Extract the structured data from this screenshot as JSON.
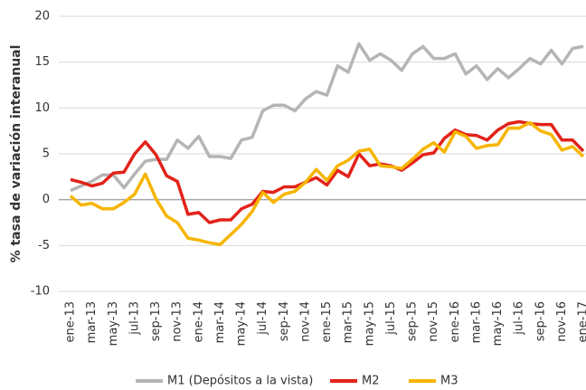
{
  "chart_data": {
    "type": "line",
    "ylabel": "% tasa de variación interanual",
    "categories": [
      "ene-13",
      null,
      "mar-13",
      null,
      "may-13",
      null,
      "jul-13",
      null,
      "sep-13",
      null,
      "nov-13",
      null,
      "ene-14",
      null,
      "mar-14",
      null,
      "may-14",
      null,
      "jul-14",
      null,
      "sep-14",
      null,
      "nov-14",
      null,
      "ene-15",
      null,
      "mar-15",
      null,
      "may-15",
      null,
      "jul-15",
      null,
      "sep-15",
      null,
      "nov-15",
      null,
      "ene-16",
      null,
      "mar-16",
      null,
      "may-16",
      null,
      "jul-16",
      null,
      "sep-16",
      null,
      "nov-16",
      null,
      "ene-17"
    ],
    "series": [
      {
        "name": "M1 (Depósitos a la vista)",
        "color": "#b5b5b5",
        "values": [
          1.0,
          1.5,
          2.0,
          2.7,
          2.7,
          1.3,
          2.8,
          4.2,
          4.4,
          4.4,
          6.5,
          5.6,
          6.9,
          4.7,
          4.7,
          4.5,
          6.5,
          6.8,
          9.7,
          10.3,
          10.3,
          9.7,
          11.0,
          11.8,
          11.4,
          14.6,
          13.9,
          17.0,
          15.2,
          15.9,
          15.2,
          14.1,
          15.9,
          16.7,
          15.4,
          15.4,
          15.9,
          13.7,
          14.6,
          13.1,
          14.3,
          13.3,
          14.3,
          15.4,
          14.8,
          16.3,
          14.8,
          16.5,
          16.7
        ]
      },
      {
        "name": "M2",
        "color": "#e2231a",
        "values": [
          2.2,
          1.9,
          1.5,
          1.8,
          2.9,
          3.0,
          5.0,
          6.3,
          4.9,
          2.6,
          2.0,
          -1.6,
          -1.4,
          -2.5,
          -2.2,
          -2.2,
          -1.0,
          -0.5,
          0.9,
          0.8,
          1.4,
          1.4,
          1.9,
          2.4,
          1.6,
          3.2,
          2.5,
          5.0,
          3.7,
          3.9,
          3.7,
          3.2,
          4.0,
          4.9,
          5.1,
          6.7,
          7.6,
          7.1,
          7.0,
          6.5,
          7.6,
          8.3,
          8.5,
          8.3,
          8.2,
          8.2,
          6.5,
          6.5,
          5.3
        ]
      },
      {
        "name": "M3",
        "color": "#f7b500",
        "values": [
          0.4,
          -0.6,
          -0.4,
          -1.0,
          -1.0,
          -0.3,
          0.6,
          2.8,
          0.1,
          -1.8,
          -2.5,
          -4.2,
          -4.4,
          -4.7,
          -4.9,
          -3.8,
          -2.7,
          -1.3,
          0.8,
          -0.3,
          0.6,
          0.9,
          1.9,
          3.3,
          2.1,
          3.7,
          4.3,
          5.3,
          5.5,
          3.7,
          3.6,
          3.4,
          4.4,
          5.5,
          6.2,
          5.2,
          7.4,
          6.9,
          5.6,
          5.9,
          6.0,
          7.8,
          7.8,
          8.4,
          7.5,
          7.1,
          5.4,
          5.8,
          4.7
        ]
      }
    ],
    "ylim": [
      -10,
      20
    ],
    "yticks": [
      -10,
      -5,
      0,
      5,
      10,
      15,
      20
    ],
    "grid": true,
    "legend": "bottom"
  }
}
